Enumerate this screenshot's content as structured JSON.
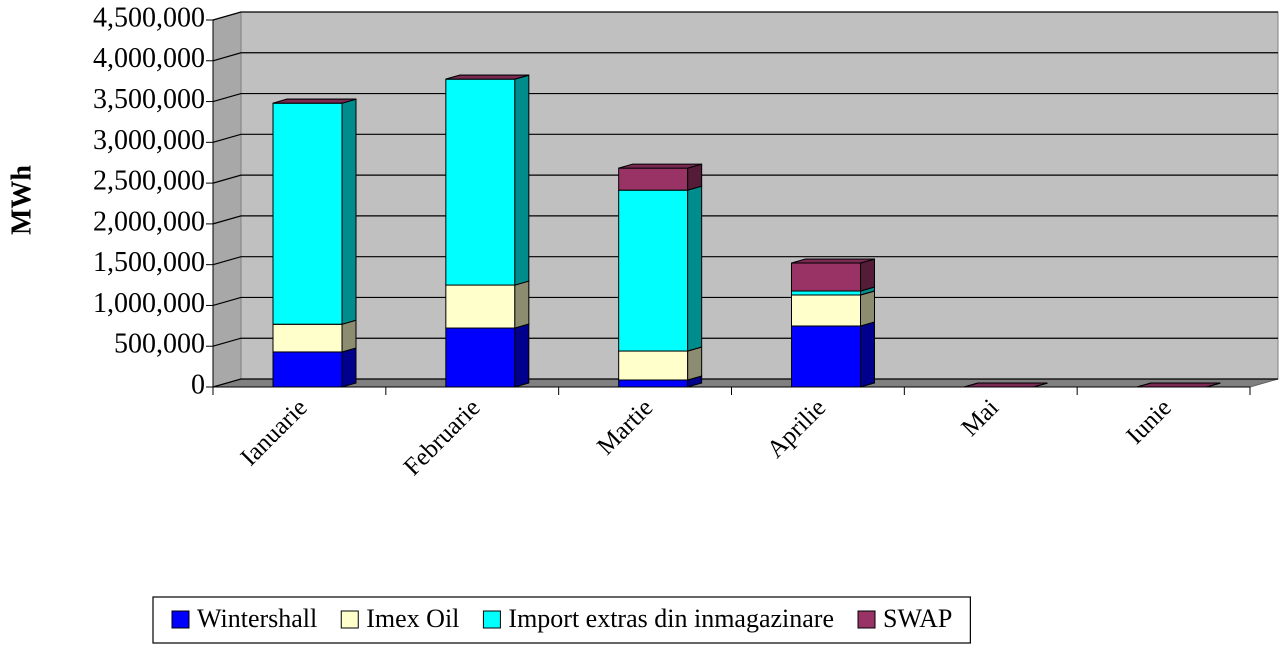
{
  "chart_data": {
    "type": "bar3d_stacked",
    "y_label": "MWh",
    "categories": [
      "Ianuarie",
      "Februarie",
      "Martie",
      "Aprilie",
      "Mai",
      "Iunie"
    ],
    "series": [
      {
        "name": "Wintershall",
        "color": "#0000ff",
        "values": [
          430000,
          723000,
          86000,
          748000,
          0,
          0
        ]
      },
      {
        "name": "Imex Oil",
        "color": "#ffffcc",
        "values": [
          340000,
          527000,
          355000,
          380000,
          0,
          0
        ]
      },
      {
        "name": "Import extras din inmagazinare",
        "color": "#00ffff",
        "values": [
          2710000,
          2525000,
          1973000,
          49000,
          0,
          0
        ]
      },
      {
        "name": "SWAP",
        "color": "#993366",
        "values": [
          0,
          0,
          270000,
          343000,
          0,
          0
        ]
      }
    ],
    "ylim": [
      0,
      4500000
    ],
    "yticks": [
      0,
      {
        "value": 500000,
        "label": "500,000"
      },
      {
        "value": 1000000,
        "label": "1,000,000"
      },
      {
        "value": 1500000,
        "label": "1,500,000"
      },
      {
        "value": 2000000,
        "label": "2,000,000"
      },
      {
        "value": 2500000,
        "label": "2,500,000"
      },
      {
        "value": 3000000,
        "label": "3,000,000"
      },
      {
        "value": 3500000,
        "label": "3,500,000"
      },
      {
        "value": 4000000,
        "label": "4,000,000"
      },
      {
        "value": 4500000,
        "label": "4,500,000"
      }
    ],
    "grid": true,
    "legend": "bottom"
  }
}
